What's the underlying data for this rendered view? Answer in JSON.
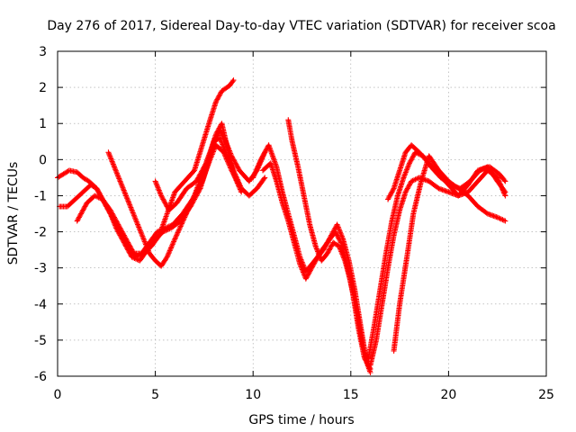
{
  "chart_data": {
    "type": "scatter",
    "title": "Day 276 of 2017, Sidereal Day-to-day VTEC variation (SDTVAR) for receiver scoa",
    "xlabel": "GPS time / hours",
    "ylabel": "SDTVAR / TECUs",
    "xlim": [
      0,
      25
    ],
    "ylim": [
      -6,
      3
    ],
    "xticks": [
      0,
      5,
      10,
      15,
      20,
      25
    ],
    "yticks": [
      -6,
      -5,
      -4,
      -3,
      -2,
      -1,
      0,
      1,
      2,
      3
    ],
    "grid": true,
    "marker": "plus",
    "color": "#ff0000",
    "series": [
      {
        "x": [
          0.0,
          0.3,
          0.6,
          1.0,
          1.3,
          1.6,
          2.0,
          2.4,
          2.8,
          3.2,
          3.6,
          4.0,
          4.4,
          4.8,
          5.2,
          5.6,
          6.0,
          6.5,
          7.0,
          7.4,
          7.8,
          8.1,
          8.4,
          8.8,
          9.0
        ],
        "y": [
          -0.5,
          -0.4,
          -0.3,
          -0.35,
          -0.5,
          -0.6,
          -0.8,
          -1.2,
          -1.6,
          -2.0,
          -2.4,
          -2.7,
          -2.6,
          -2.4,
          -2.1,
          -1.5,
          -0.9,
          -0.6,
          -0.3,
          0.4,
          1.1,
          1.6,
          1.9,
          2.05,
          2.2
        ]
      },
      {
        "x": [
          0.1,
          0.5,
          0.9,
          1.3,
          1.7,
          2.0,
          2.3,
          2.7,
          3.0,
          3.4,
          3.8,
          4.2,
          4.6,
          5.0,
          5.4,
          5.8,
          6.3,
          6.8,
          7.3,
          7.7,
          8.0,
          8.3,
          8.6,
          9.0,
          9.4,
          9.8,
          10.2,
          10.6
        ],
        "y": [
          -1.3,
          -1.3,
          -1.1,
          -0.9,
          -0.7,
          -0.8,
          -1.1,
          -1.5,
          -1.9,
          -2.3,
          -2.7,
          -2.8,
          -2.5,
          -2.2,
          -2.0,
          -1.9,
          -1.7,
          -1.3,
          -0.8,
          -0.1,
          0.5,
          0.6,
          0.2,
          -0.3,
          -0.8,
          -1.0,
          -0.8,
          -0.5
        ]
      },
      {
        "x": [
          1.0,
          1.2,
          1.5,
          1.9,
          2.3,
          2.7,
          3.1,
          3.5,
          3.9,
          4.3,
          4.7,
          5.1,
          5.5,
          5.9,
          6.4,
          6.9,
          7.4,
          7.8,
          8.1,
          8.5,
          8.9,
          9.3
        ],
        "y": [
          -1.7,
          -1.5,
          -1.2,
          -1.0,
          -1.1,
          -1.4,
          -1.8,
          -2.2,
          -2.6,
          -2.6,
          -2.3,
          -2.0,
          -1.9,
          -1.8,
          -1.5,
          -1.1,
          -0.6,
          0.0,
          0.4,
          0.2,
          -0.3,
          -0.7
        ]
      },
      {
        "x": [
          2.6,
          2.9,
          3.2,
          3.5,
          3.8,
          4.1,
          4.4,
          4.7,
          5.0,
          5.3,
          5.6,
          6.0,
          6.5,
          7.0,
          7.4,
          7.8,
          8.1,
          8.4,
          8.7,
          9.0,
          9.4
        ],
        "y": [
          0.2,
          -0.2,
          -0.6,
          -1.0,
          -1.4,
          -1.8,
          -2.2,
          -2.6,
          -2.8,
          -2.95,
          -2.7,
          -2.2,
          -1.6,
          -1.0,
          -0.4,
          0.2,
          0.7,
          1.0,
          0.3,
          -0.4,
          -0.9
        ]
      },
      {
        "x": [
          5.0,
          5.3,
          5.7,
          6.1,
          6.6,
          7.1,
          7.6,
          8.0,
          8.3,
          8.6,
          8.9,
          9.3,
          9.8,
          10.2,
          10.6
        ],
        "y": [
          -0.6,
          -1.0,
          -1.4,
          -1.2,
          -0.8,
          -0.6,
          -0.1,
          0.5,
          0.8,
          0.5,
          0.1,
          -0.3,
          -0.6,
          -0.3,
          0.2
        ]
      },
      {
        "x": [
          10.0,
          10.4,
          10.8,
          11.2,
          11.5,
          11.8,
          12.1,
          12.4,
          12.7,
          13.0,
          13.3,
          13.6,
          14.0,
          14.3,
          14.6,
          14.9,
          15.2,
          15.5,
          15.8,
          16.0
        ],
        "y": [
          -0.5,
          0.0,
          0.4,
          -0.2,
          -0.9,
          -1.5,
          -2.1,
          -2.7,
          -3.1,
          -2.9,
          -2.7,
          -2.5,
          -2.1,
          -1.8,
          -2.2,
          -2.8,
          -3.6,
          -4.6,
          -5.6,
          -5.9
        ]
      },
      {
        "x": [
          10.5,
          10.9,
          11.2,
          11.5,
          11.8,
          12.1,
          12.4,
          12.7,
          13.0,
          13.4,
          13.8,
          14.2,
          14.5,
          14.8,
          15.1,
          15.4,
          15.7,
          16.0
        ],
        "y": [
          -0.3,
          -0.1,
          -0.6,
          -1.2,
          -1.7,
          -2.3,
          -2.9,
          -3.3,
          -3.0,
          -2.6,
          -2.3,
          -2.0,
          -2.3,
          -2.9,
          -3.7,
          -4.7,
          -5.5,
          -5.8
        ]
      },
      {
        "x": [
          11.8,
          12.0,
          12.3,
          12.6,
          12.9,
          13.2,
          13.5,
          13.8,
          14.1,
          14.4,
          14.7,
          15.0,
          15.3,
          15.6,
          15.9
        ],
        "y": [
          1.1,
          0.5,
          -0.2,
          -1.0,
          -1.8,
          -2.4,
          -2.8,
          -2.6,
          -2.3,
          -2.4,
          -2.8,
          -3.4,
          -4.2,
          -5.1,
          -5.7
        ]
      },
      {
        "x": [
          16.0,
          16.3,
          16.6,
          16.9,
          17.2,
          17.5,
          17.8,
          18.1,
          18.5,
          19.0,
          19.5,
          20.0,
          20.5,
          21.0,
          21.5,
          22.0,
          22.5,
          22.9
        ],
        "y": [
          -5.7,
          -5.0,
          -4.0,
          -3.0,
          -2.1,
          -1.4,
          -0.9,
          -0.6,
          -0.5,
          -0.6,
          -0.8,
          -0.9,
          -1.0,
          -0.9,
          -0.6,
          -0.3,
          -0.5,
          -1.0
        ]
      },
      {
        "x": [
          15.9,
          16.2,
          16.5,
          16.8,
          17.1,
          17.4,
          17.7,
          18.0,
          18.3,
          18.7,
          19.1,
          19.6,
          20.1,
          20.6,
          21.1,
          21.6,
          22.1,
          22.6,
          22.9
        ],
        "y": [
          -5.5,
          -4.6,
          -3.6,
          -2.6,
          -1.7,
          -1.0,
          -0.5,
          -0.1,
          0.2,
          0.1,
          -0.2,
          -0.5,
          -0.7,
          -0.8,
          -0.6,
          -0.3,
          -0.2,
          -0.4,
          -0.6
        ]
      },
      {
        "x": [
          17.2,
          17.5,
          17.9,
          18.2,
          18.6,
          19.0,
          19.5,
          20.0,
          20.5,
          21.0,
          21.5,
          22.0,
          22.5,
          22.9
        ],
        "y": [
          -5.3,
          -4.0,
          -2.6,
          -1.5,
          -0.6,
          0.1,
          -0.3,
          -0.6,
          -0.8,
          -1.0,
          -1.3,
          -1.5,
          -1.6,
          -1.7
        ]
      },
      {
        "x": [
          16.9,
          17.2,
          17.5,
          17.8,
          18.1,
          18.5,
          19.0,
          19.5,
          20.0,
          20.5,
          21.0,
          21.5,
          22.0,
          22.5,
          22.9
        ],
        "y": [
          -1.1,
          -0.8,
          -0.3,
          0.2,
          0.4,
          0.2,
          -0.1,
          -0.4,
          -0.7,
          -1.0,
          -0.7,
          -0.3,
          -0.2,
          -0.6,
          -0.9
        ]
      }
    ]
  }
}
